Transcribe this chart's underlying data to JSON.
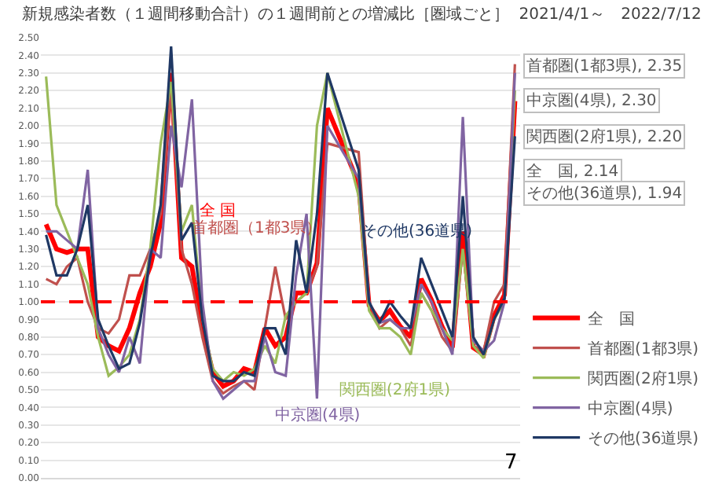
{
  "chart_data": {
    "type": "line",
    "title": "新規感染者数（１週間移動合計）の１週間前との増減比［圏域ごと］",
    "subtitle": "2021/4/1～　2022/7/12",
    "categories": [
      null,
      null,
      null,
      null,
      null,
      null,
      null,
      null,
      null,
      null,
      null,
      null,
      null,
      null,
      null,
      null,
      null,
      null,
      null,
      null,
      null,
      null,
      null,
      null,
      null,
      null,
      null,
      null,
      null,
      null,
      null,
      null,
      null,
      null,
      null,
      null,
      null,
      null,
      null,
      null,
      null,
      null,
      null,
      null,
      null,
      null
    ],
    "series": [
      {
        "name": "全　国",
        "color": "#ff0000",
        "values": [
          1.44,
          1.3,
          1.28,
          1.3,
          1.3,
          0.8,
          0.75,
          0.72,
          0.85,
          1.05,
          1.2,
          1.45,
          2.3,
          1.25,
          1.2,
          0.85,
          0.6,
          0.52,
          0.55,
          0.62,
          0.6,
          0.85,
          0.75,
          0.8,
          1.05,
          1.05,
          1.22,
          2.1,
          null,
          null,
          1.67,
          0.98,
          0.89,
          0.95,
          0.86,
          0.8,
          1.13,
          1.01,
          0.86,
          0.74,
          1.4,
          0.74,
          0.7,
          0.92,
          1.04,
          2.14
        ]
      },
      {
        "name": "首都圏(1都3県)",
        "color": "#c0504d",
        "values": [
          1.13,
          1.1,
          1.2,
          1.25,
          1.0,
          0.85,
          0.82,
          0.9,
          1.15,
          1.15,
          1.3,
          1.5,
          2.2,
          1.3,
          1.1,
          0.8,
          0.55,
          0.48,
          0.52,
          0.55,
          0.5,
          0.85,
          1.2,
          0.9,
          1.0,
          1.05,
          1.2,
          1.9,
          null,
          null,
          1.85,
          1.0,
          0.85,
          0.9,
          0.85,
          0.75,
          1.05,
          0.95,
          0.8,
          0.72,
          1.3,
          0.75,
          0.72,
          1.0,
          1.1,
          2.35
        ]
      },
      {
        "name": "関西圏(2府1県)",
        "color": "#9bbb59",
        "values": [
          2.28,
          1.55,
          1.4,
          1.25,
          1.1,
          0.8,
          0.58,
          0.63,
          0.7,
          0.9,
          1.3,
          1.9,
          2.25,
          1.4,
          1.55,
          0.9,
          0.62,
          0.55,
          0.6,
          0.58,
          0.62,
          0.75,
          0.65,
          0.92,
          1.0,
          1.05,
          2.0,
          2.3,
          null,
          null,
          1.6,
          0.95,
          0.85,
          0.85,
          0.8,
          0.7,
          1.05,
          0.95,
          0.85,
          0.78,
          1.3,
          0.75,
          0.68,
          0.9,
          1.0,
          2.2
        ]
      },
      {
        "name": "中京圏(4県)",
        "color": "#8064a2",
        "values": [
          1.4,
          1.4,
          1.35,
          1.3,
          1.75,
          0.85,
          0.7,
          0.6,
          0.8,
          0.65,
          1.3,
          1.25,
          2.0,
          1.65,
          2.15,
          1.0,
          0.55,
          0.45,
          0.5,
          0.55,
          0.55,
          0.8,
          0.6,
          0.58,
          1.15,
          1.5,
          0.45,
          2.0,
          null,
          null,
          1.7,
          1.0,
          0.88,
          0.9,
          0.85,
          0.85,
          1.1,
          1.0,
          0.85,
          0.7,
          2.05,
          0.78,
          0.72,
          0.78,
          1.0,
          2.3
        ]
      },
      {
        "name": "その他(36道県)",
        "color": "#1f3864",
        "values": [
          1.38,
          1.15,
          1.15,
          1.3,
          1.55,
          0.9,
          0.75,
          0.62,
          0.65,
          0.88,
          1.25,
          1.55,
          2.45,
          1.35,
          1.45,
          0.9,
          0.58,
          0.55,
          0.55,
          0.6,
          0.58,
          0.85,
          0.85,
          0.7,
          1.35,
          1.05,
          1.5,
          2.3,
          null,
          null,
          1.75,
          1.0,
          0.88,
          1.0,
          0.92,
          0.85,
          1.25,
          1.1,
          0.95,
          0.8,
          1.6,
          0.8,
          0.7,
          0.9,
          1.02,
          1.94
        ]
      }
    ],
    "ylim": [
      0,
      2.5
    ],
    "yticks": [
      {
        "value": 0,
        "label": "0.00"
      },
      {
        "value": 0.1,
        "label": "0.10"
      },
      {
        "value": 0.2,
        "label": "0.20"
      },
      {
        "value": 0.3,
        "label": "0.30"
      },
      {
        "value": 0.4,
        "label": "0.40"
      },
      {
        "value": 0.5,
        "label": "0.50"
      },
      {
        "value": 0.6,
        "label": "0.60"
      },
      {
        "value": 0.7,
        "label": "0.70"
      },
      {
        "value": 0.8,
        "label": "0.80"
      },
      {
        "value": 0.9,
        "label": "0.90"
      },
      {
        "value": 1.0,
        "label": "1.00"
      },
      {
        "value": 1.1,
        "label": "1.10"
      },
      {
        "value": 1.2,
        "label": "1.20"
      },
      {
        "value": 1.3,
        "label": "1.30"
      },
      {
        "value": 1.4,
        "label": "1.40"
      },
      {
        "value": 1.5,
        "label": "1.50"
      },
      {
        "value": 1.6,
        "label": "1.60"
      },
      {
        "value": 1.7,
        "label": "1.70"
      },
      {
        "value": 1.8,
        "label": "1.80"
      },
      {
        "value": 1.9,
        "label": "1.90"
      },
      {
        "value": 2.0,
        "label": "2.00"
      },
      {
        "value": 2.1,
        "label": "2.10"
      },
      {
        "value": 2.2,
        "label": "2.20"
      },
      {
        "value": 2.3,
        "label": "2.30"
      },
      {
        "value": 2.4,
        "label": "2.40"
      },
      {
        "value": 2.5,
        "label": "2.50"
      }
    ],
    "tick_labels": "y",
    "grid": "y",
    "legend": "bottom right",
    "marker": "none",
    "line_style": "solid",
    "ref_lines": [
      {
        "axis": "y",
        "value": 1.0,
        "color": "#ff0000",
        "line_style": "dashed"
      }
    ],
    "annotations": [
      "全 国",
      "首都圏（1都3県）",
      "その他(36道県)",
      "関西圏(2府1県)",
      "中京圏(4県)",
      "首都圏(1都3県), 2.35",
      "中京圏(4県), 2.30",
      "関西圏(2府1県), 2.20",
      "全　国, 2.14",
      "その他(36道県), 1.94",
      "7"
    ]
  }
}
